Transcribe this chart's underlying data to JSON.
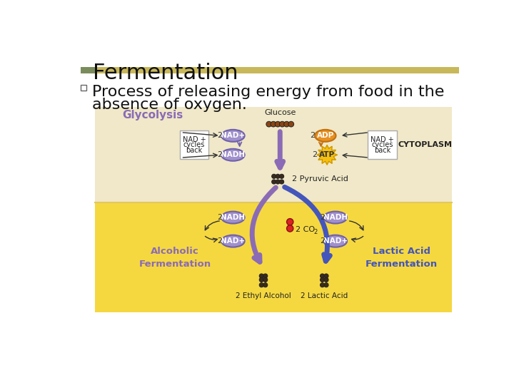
{
  "title": "Fermentation",
  "bullet_line1": "Process of releasing energy from food in the",
  "bullet_line2": "absence of oxygen.",
  "bg_color": "#ffffff",
  "bar_color_left": "#7a8c5c",
  "bar_color_right": "#c8b85a",
  "diagram_bg_top": "#f0e8c0",
  "diagram_bg_bottom": "#f5d840",
  "diagram_gradient_mid": "#f5e070",
  "purple": "#8b6bb5",
  "blue": "#4455bb",
  "dark_brown": "#3a2a1a",
  "red_co2": "#cc2222",
  "nad_face": "#a090cc",
  "nad_edge": "#7060aa",
  "adp_face": "#e89020",
  "adp_edge": "#c07010",
  "atp_face": "#f5c010",
  "white": "#ffffff",
  "black": "#111111",
  "gray": "#555555"
}
